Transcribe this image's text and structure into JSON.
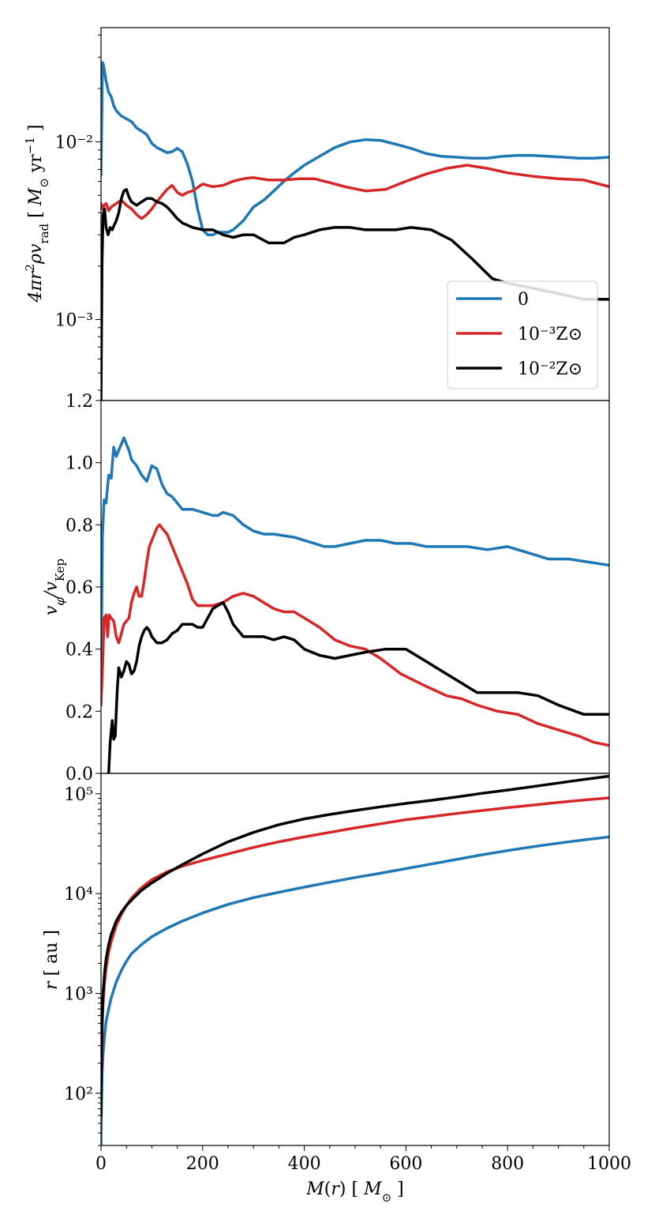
{
  "chart_data": [
    {
      "type": "line",
      "panel": "top",
      "ylabel": "4πr²ρv_rad [ M⊙ yr⁻¹ ]",
      "yscale": "log",
      "ylim": [
        0.00035,
        0.044
      ],
      "y_tick_labels": [
        "10⁻²",
        "10⁻³"
      ],
      "y_tick_values": [
        0.01,
        0.001
      ],
      "xlim": [
        0,
        1000
      ],
      "legend_position": "lower-right",
      "legend": [
        "0",
        "10⁻³Z⊙",
        "10⁻²Z⊙"
      ],
      "series": [
        {
          "name": "0",
          "color": "#1f77b4",
          "x": [
            0,
            3,
            5,
            10,
            15,
            20,
            25,
            30,
            40,
            50,
            60,
            70,
            80,
            90,
            100,
            110,
            120,
            130,
            140,
            150,
            160,
            170,
            180,
            190,
            200,
            210,
            220,
            230,
            240,
            250,
            260,
            280,
            300,
            320,
            340,
            360,
            380,
            400,
            430,
            460,
            490,
            520,
            550,
            580,
            610,
            640,
            670,
            700,
            730,
            760,
            790,
            820,
            850,
            880,
            910,
            940,
            970,
            1000
          ],
          "y": [
            0.0065,
            0.028,
            0.027,
            0.022,
            0.019,
            0.018,
            0.016,
            0.015,
            0.014,
            0.0135,
            0.013,
            0.012,
            0.0115,
            0.011,
            0.0098,
            0.0093,
            0.009,
            0.0087,
            0.0088,
            0.0092,
            0.0088,
            0.0075,
            0.006,
            0.0042,
            0.0032,
            0.003,
            0.003,
            0.0031,
            0.0031,
            0.0031,
            0.0032,
            0.0036,
            0.0043,
            0.0047,
            0.0053,
            0.006,
            0.0067,
            0.0074,
            0.0083,
            0.0093,
            0.01,
            0.0103,
            0.0102,
            0.0097,
            0.0092,
            0.0086,
            0.0083,
            0.0082,
            0.0081,
            0.0081,
            0.0083,
            0.0084,
            0.0084,
            0.0083,
            0.0082,
            0.0081,
            0.0081,
            0.0082
          ]
        },
        {
          "name": "10⁻³Z⊙",
          "color": "#d62728",
          "x": [
            0,
            3,
            6,
            10,
            15,
            20,
            30,
            40,
            50,
            60,
            70,
            80,
            90,
            100,
            110,
            120,
            130,
            140,
            150,
            160,
            170,
            180,
            200,
            220,
            240,
            260,
            280,
            300,
            330,
            360,
            390,
            420,
            450,
            480,
            520,
            560,
            600,
            640,
            680,
            720,
            760,
            800,
            850,
            900,
            950,
            1000
          ],
          "y": [
            0.0045,
            0.0042,
            0.0044,
            0.0045,
            0.0041,
            0.0043,
            0.0045,
            0.0047,
            0.0044,
            0.0042,
            0.0039,
            0.0037,
            0.0039,
            0.0042,
            0.0046,
            0.005,
            0.0054,
            0.0057,
            0.0052,
            0.005,
            0.0052,
            0.0053,
            0.0058,
            0.0056,
            0.0057,
            0.006,
            0.0062,
            0.0063,
            0.0061,
            0.0061,
            0.0062,
            0.0062,
            0.0059,
            0.0056,
            0.0053,
            0.0054,
            0.006,
            0.0066,
            0.0071,
            0.0074,
            0.0071,
            0.0067,
            0.0064,
            0.0062,
            0.0061,
            0.0056
          ]
        },
        {
          "name": "10⁻²Z⊙",
          "color": "#000000",
          "x": [
            0,
            2,
            4,
            7,
            10,
            14,
            18,
            22,
            26,
            30,
            35,
            40,
            45,
            50,
            55,
            60,
            70,
            80,
            90,
            100,
            110,
            120,
            130,
            140,
            150,
            160,
            180,
            200,
            220,
            240,
            260,
            280,
            300,
            330,
            360,
            380,
            400,
            430,
            460,
            490,
            520,
            550,
            580,
            610,
            650,
            690,
            730,
            770,
            800,
            850,
            900,
            950,
            1000
          ],
          "y": [
            0.00035,
            0.0021,
            0.0039,
            0.0042,
            0.0033,
            0.003,
            0.0033,
            0.0032,
            0.0034,
            0.0036,
            0.004,
            0.0048,
            0.0053,
            0.0054,
            0.0049,
            0.0046,
            0.0044,
            0.0046,
            0.0048,
            0.0048,
            0.0046,
            0.0045,
            0.0043,
            0.004,
            0.0037,
            0.0035,
            0.0033,
            0.0032,
            0.0032,
            0.003,
            0.0029,
            0.003,
            0.003,
            0.0027,
            0.0027,
            0.0029,
            0.003,
            0.0032,
            0.0033,
            0.0033,
            0.0032,
            0.0032,
            0.0032,
            0.0033,
            0.0032,
            0.0028,
            0.0022,
            0.0017,
            0.0016,
            0.0015,
            0.0014,
            0.0013,
            0.0013
          ]
        }
      ]
    },
    {
      "type": "line",
      "panel": "middle",
      "ylabel": "v_φ / v_Kep",
      "yscale": "linear",
      "ylim": [
        0,
        1.2
      ],
      "y_tick_labels": [
        "0.0",
        "0.2",
        "0.4",
        "0.6",
        "0.8",
        "1.0",
        "1.2"
      ],
      "y_tick_values": [
        0,
        0.2,
        0.4,
        0.6,
        0.8,
        1.0,
        1.2
      ],
      "xlim": [
        0,
        1000
      ],
      "series": [
        {
          "name": "0",
          "color": "#1f77b4",
          "x": [
            0,
            3,
            6,
            10,
            15,
            20,
            25,
            30,
            35,
            40,
            45,
            50,
            55,
            60,
            70,
            80,
            90,
            100,
            110,
            120,
            130,
            140,
            150,
            160,
            180,
            200,
            220,
            230,
            240,
            260,
            280,
            300,
            320,
            340,
            380,
            420,
            440,
            460,
            490,
            520,
            550,
            580,
            610,
            640,
            680,
            720,
            760,
            800,
            840,
            880,
            920,
            960,
            1000
          ],
          "y": [
            0.3,
            0.77,
            0.88,
            0.87,
            0.96,
            0.95,
            1.05,
            1.02,
            1.04,
            1.06,
            1.08,
            1.06,
            1.04,
            1.01,
            0.99,
            0.96,
            0.94,
            0.99,
            0.98,
            0.93,
            0.9,
            0.89,
            0.87,
            0.85,
            0.85,
            0.84,
            0.83,
            0.83,
            0.84,
            0.83,
            0.8,
            0.78,
            0.77,
            0.77,
            0.76,
            0.74,
            0.73,
            0.73,
            0.74,
            0.75,
            0.75,
            0.74,
            0.74,
            0.73,
            0.73,
            0.73,
            0.72,
            0.73,
            0.71,
            0.69,
            0.69,
            0.68,
            0.67
          ]
        },
        {
          "name": "10⁻³Z⊙",
          "color": "#d62728",
          "x": [
            0,
            3,
            6,
            10,
            13,
            16,
            20,
            25,
            30,
            35,
            40,
            45,
            50,
            55,
            60,
            65,
            70,
            75,
            80,
            85,
            90,
            95,
            100,
            105,
            110,
            115,
            120,
            130,
            140,
            150,
            160,
            170,
            180,
            190,
            200,
            220,
            240,
            260,
            280,
            300,
            320,
            340,
            360,
            380,
            400,
            430,
            460,
            490,
            520,
            550,
            590,
            640,
            680,
            710,
            740,
            780,
            820,
            860,
            900,
            940,
            970,
            1000
          ],
          "y": [
            0.22,
            0.34,
            0.5,
            0.51,
            0.44,
            0.51,
            0.5,
            0.49,
            0.44,
            0.42,
            0.45,
            0.48,
            0.49,
            0.5,
            0.55,
            0.58,
            0.6,
            0.57,
            0.57,
            0.62,
            0.68,
            0.73,
            0.75,
            0.77,
            0.79,
            0.8,
            0.79,
            0.77,
            0.73,
            0.69,
            0.65,
            0.61,
            0.56,
            0.54,
            0.54,
            0.54,
            0.55,
            0.57,
            0.58,
            0.57,
            0.55,
            0.53,
            0.52,
            0.52,
            0.5,
            0.47,
            0.43,
            0.41,
            0.4,
            0.37,
            0.32,
            0.28,
            0.25,
            0.24,
            0.22,
            0.2,
            0.19,
            0.16,
            0.14,
            0.12,
            0.1,
            0.09
          ]
        },
        {
          "name": "10⁻²Z⊙",
          "color": "#000000",
          "x": [
            15,
            18,
            22,
            25,
            28,
            32,
            35,
            40,
            45,
            50,
            55,
            60,
            65,
            70,
            75,
            80,
            85,
            90,
            95,
            100,
            110,
            120,
            130,
            140,
            150,
            160,
            170,
            180,
            190,
            200,
            210,
            220,
            230,
            240,
            250,
            260,
            270,
            280,
            300,
            320,
            340,
            360,
            380,
            400,
            430,
            460,
            490,
            520,
            560,
            600,
            640,
            680,
            710,
            740,
            780,
            820,
            860,
            900,
            950,
            980,
            1000
          ],
          "y": [
            0.0,
            0.1,
            0.17,
            0.11,
            0.12,
            0.27,
            0.34,
            0.31,
            0.33,
            0.36,
            0.35,
            0.32,
            0.33,
            0.36,
            0.41,
            0.44,
            0.46,
            0.47,
            0.46,
            0.44,
            0.42,
            0.42,
            0.43,
            0.45,
            0.46,
            0.48,
            0.48,
            0.48,
            0.47,
            0.47,
            0.5,
            0.53,
            0.54,
            0.55,
            0.52,
            0.48,
            0.46,
            0.44,
            0.44,
            0.44,
            0.43,
            0.44,
            0.43,
            0.4,
            0.38,
            0.37,
            0.38,
            0.39,
            0.4,
            0.4,
            0.36,
            0.32,
            0.29,
            0.26,
            0.26,
            0.26,
            0.25,
            0.22,
            0.19,
            0.19,
            0.19
          ]
        }
      ]
    },
    {
      "type": "line",
      "panel": "bottom",
      "ylabel": "r [ au ]",
      "yscale": "log",
      "ylim": [
        30,
        160000
      ],
      "y_tick_labels": [
        "10²",
        "10³",
        "10⁴",
        "10⁵"
      ],
      "y_tick_values": [
        100,
        1000,
        10000,
        100000
      ],
      "xlim": [
        0,
        1000
      ],
      "xlabel": "M(r) [ M⊙ ]",
      "x_tick_labels": [
        "0",
        "200",
        "400",
        "600",
        "800",
        "1000"
      ],
      "x_tick_values": [
        0,
        200,
        400,
        600,
        800,
        1000
      ],
      "series": [
        {
          "name": "0",
          "color": "#1f77b4",
          "x": [
            0,
            1,
            2,
            4,
            7,
            10,
            15,
            20,
            30,
            40,
            50,
            60,
            80,
            100,
            130,
            160,
            200,
            250,
            300,
            350,
            400,
            450,
            500,
            550,
            600,
            650,
            700,
            750,
            800,
            850,
            900,
            950,
            1000
          ],
          "y": [
            30,
            80,
            150,
            250,
            380,
            520,
            700,
            900,
            1300,
            1700,
            2100,
            2500,
            3100,
            3700,
            4500,
            5300,
            6400,
            7800,
            9100,
            10300,
            11600,
            13000,
            14500,
            16000,
            17800,
            19800,
            22000,
            24500,
            27000,
            29500,
            32000,
            34500,
            37000
          ]
        },
        {
          "name": "10⁻³Z⊙",
          "color": "#d62728",
          "x": [
            0,
            1,
            2,
            4,
            7,
            10,
            15,
            20,
            30,
            40,
            50,
            60,
            80,
            100,
            130,
            160,
            200,
            250,
            300,
            350,
            400,
            450,
            500,
            550,
            600,
            650,
            700,
            750,
            800,
            850,
            900,
            950,
            1000
          ],
          "y": [
            60,
            200,
            400,
            800,
            1300,
            1800,
            2600,
            3300,
            4800,
            6200,
            7600,
            9000,
            11500,
            13800,
            16500,
            18800,
            21500,
            25000,
            29000,
            33000,
            37000,
            41000,
            45500,
            50000,
            55000,
            59000,
            63500,
            68000,
            72500,
            77000,
            82000,
            86500,
            91000
          ]
        },
        {
          "name": "10⁻²Z⊙",
          "color": "#000000",
          "x": [
            0,
            1,
            2,
            4,
            7,
            10,
            15,
            20,
            30,
            40,
            50,
            60,
            80,
            100,
            130,
            160,
            200,
            250,
            300,
            350,
            400,
            450,
            500,
            550,
            600,
            650,
            700,
            750,
            800,
            850,
            900,
            950,
            1000
          ],
          "y": [
            60,
            250,
            550,
            1000,
            1600,
            2200,
            3100,
            3900,
            5300,
            6500,
            7600,
            8600,
            10800,
            12800,
            16000,
            19500,
            25000,
            33000,
            41000,
            49000,
            56000,
            62000,
            68000,
            74000,
            80000,
            86000,
            93000,
            101000,
            109000,
            118000,
            128000,
            139000,
            150000
          ]
        }
      ]
    }
  ]
}
